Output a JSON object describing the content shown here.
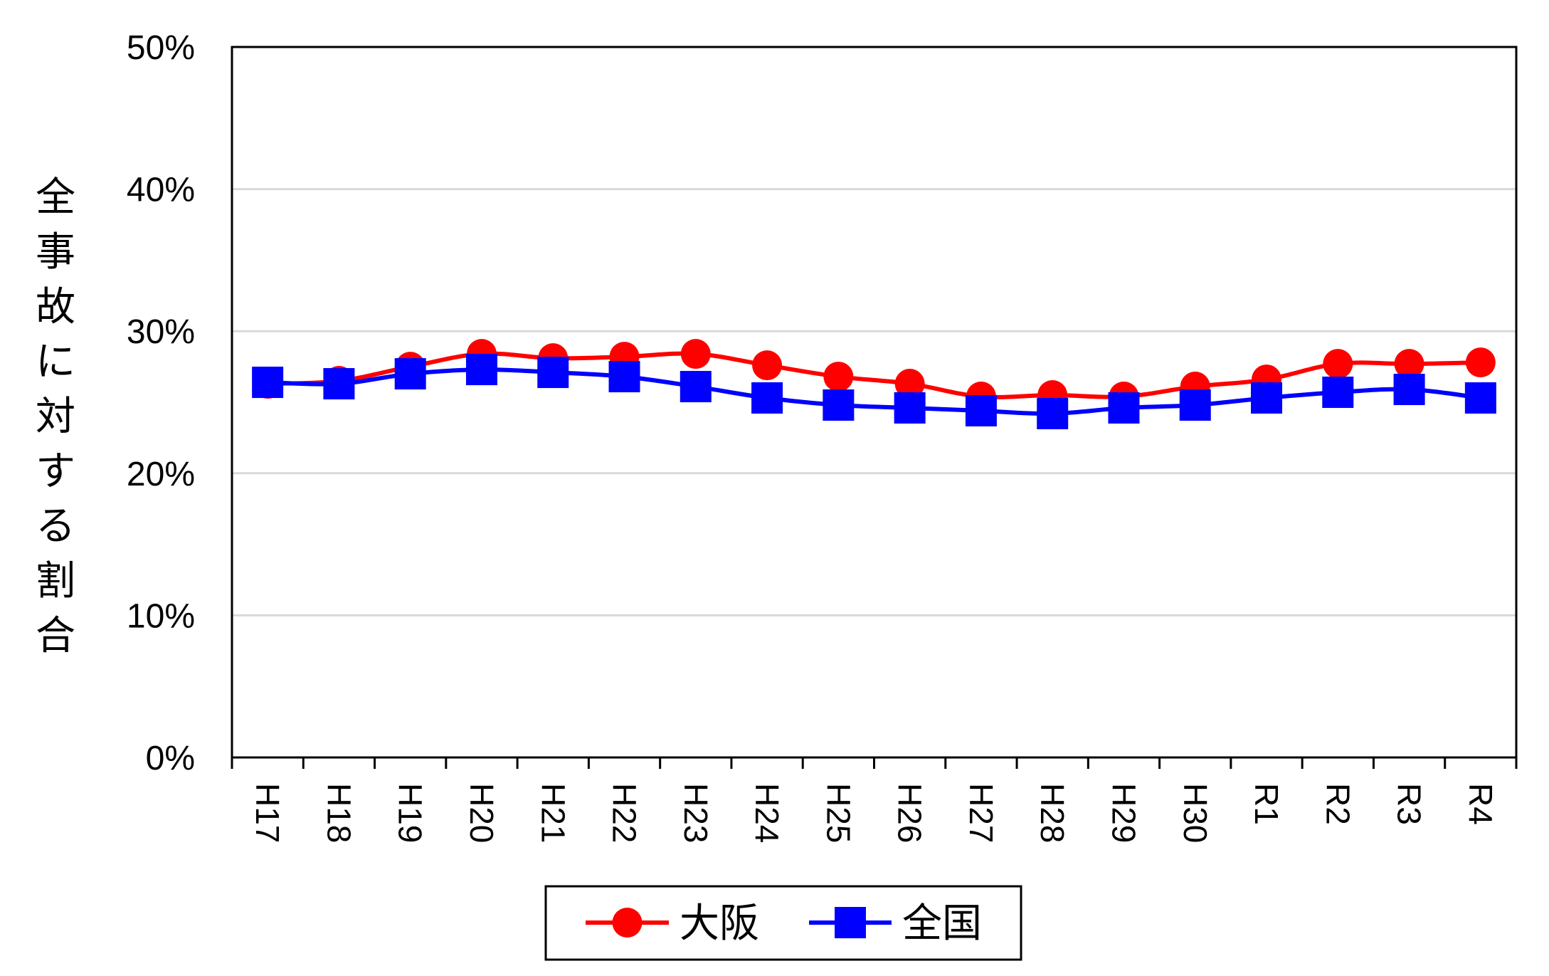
{
  "chart_data": {
    "type": "line",
    "title": "",
    "xlabel": "",
    "ylabel": "全事故に対する割合",
    "categories": [
      "H17",
      "H18",
      "H19",
      "H20",
      "H21",
      "H22",
      "H23",
      "H24",
      "H25",
      "H26",
      "H27",
      "H28",
      "H29",
      "H30",
      "R1",
      "R2",
      "R3",
      "R4"
    ],
    "yticks": [
      "0%",
      "10%",
      "20%",
      "30%",
      "40%",
      "50%"
    ],
    "ylim": [
      0,
      50
    ],
    "grid": true,
    "legend_position": "bottom",
    "series": [
      {
        "name": "大阪",
        "color": "#ff0000",
        "marker": "circle",
        "values": [
          26.3,
          26.5,
          27.5,
          28.4,
          28.1,
          28.2,
          28.4,
          27.6,
          26.8,
          26.3,
          25.4,
          25.5,
          25.4,
          26.1,
          26.6,
          27.7,
          27.7,
          27.8
        ]
      },
      {
        "name": "全国",
        "color": "#0000ff",
        "marker": "square",
        "values": [
          26.4,
          26.3,
          27.0,
          27.3,
          27.1,
          26.8,
          26.1,
          25.3,
          24.8,
          24.6,
          24.4,
          24.2,
          24.6,
          24.8,
          25.3,
          25.7,
          25.9,
          25.3
        ]
      }
    ]
  }
}
